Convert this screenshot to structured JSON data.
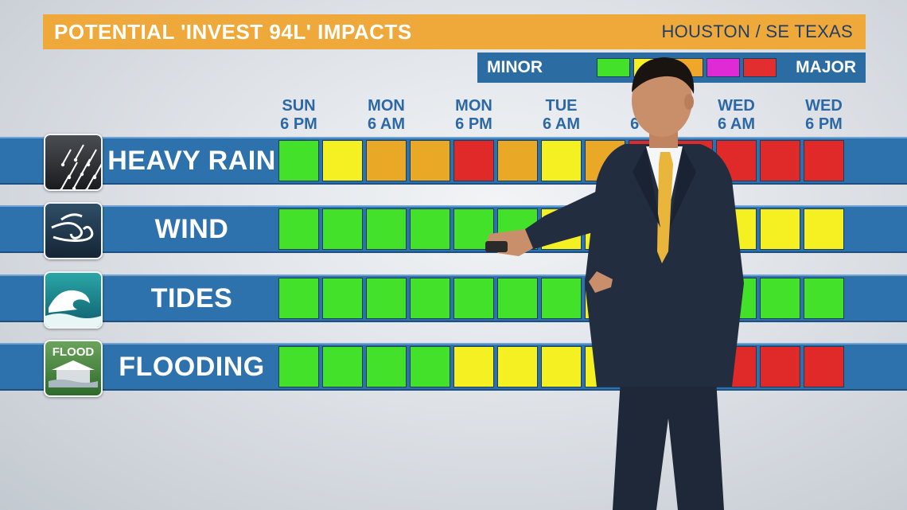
{
  "title": "POTENTIAL 'INVEST 94L' IMPACTS",
  "region": "HOUSTON / SE TEXAS",
  "legend": {
    "min_label": "MINOR",
    "max_label": "MAJOR",
    "swatches": [
      "#44e12a",
      "#f4f022",
      "#f0a629",
      "#e02ad6",
      "#e22e2e"
    ]
  },
  "times": [
    {
      "day": "SUN",
      "time": "6 PM"
    },
    {
      "day": "MON",
      "time": "6 AM"
    },
    {
      "day": "MON",
      "time": "6 PM"
    },
    {
      "day": "TUE",
      "time": "6 AM"
    },
    {
      "day": "TUE",
      "time": "6 PM"
    },
    {
      "day": "WED",
      "time": "6 AM"
    },
    {
      "day": "WED",
      "time": "6 PM"
    }
  ],
  "colors": {
    "green": "#44e12a",
    "yellow": "#f4f022",
    "orange": "#e9a927",
    "red": "#e02a2a",
    "band": "#2e72ad",
    "header_text": "#2c68a5",
    "banner": "#efa93a"
  },
  "rows": [
    {
      "label": "HEAVY RAIN",
      "icon": "rain-icon",
      "levels": [
        "green",
        "yellow",
        "orange",
        "orange",
        "red",
        "orange",
        "yellow",
        "orange",
        "red",
        "red",
        "red",
        "red",
        "red"
      ]
    },
    {
      "label": "WIND",
      "icon": "wind-icon",
      "levels": [
        "green",
        "green",
        "green",
        "green",
        "green",
        "green",
        "yellow",
        "yellow",
        "yellow",
        "yellow",
        "yellow",
        "yellow",
        "yellow"
      ]
    },
    {
      "label": "TIDES",
      "icon": "wave-icon",
      "levels": [
        "green",
        "green",
        "green",
        "green",
        "green",
        "green",
        "green",
        "yellow",
        "yellow",
        "yellow",
        "green",
        "green",
        "green"
      ]
    },
    {
      "label": "FLOODING",
      "icon": "flood-icon",
      "levels": [
        "green",
        "green",
        "green",
        "green",
        "yellow",
        "yellow",
        "yellow",
        "yellow",
        "red",
        "red",
        "red",
        "red",
        "red"
      ]
    }
  ],
  "flood_icon_text": "FLOOD"
}
